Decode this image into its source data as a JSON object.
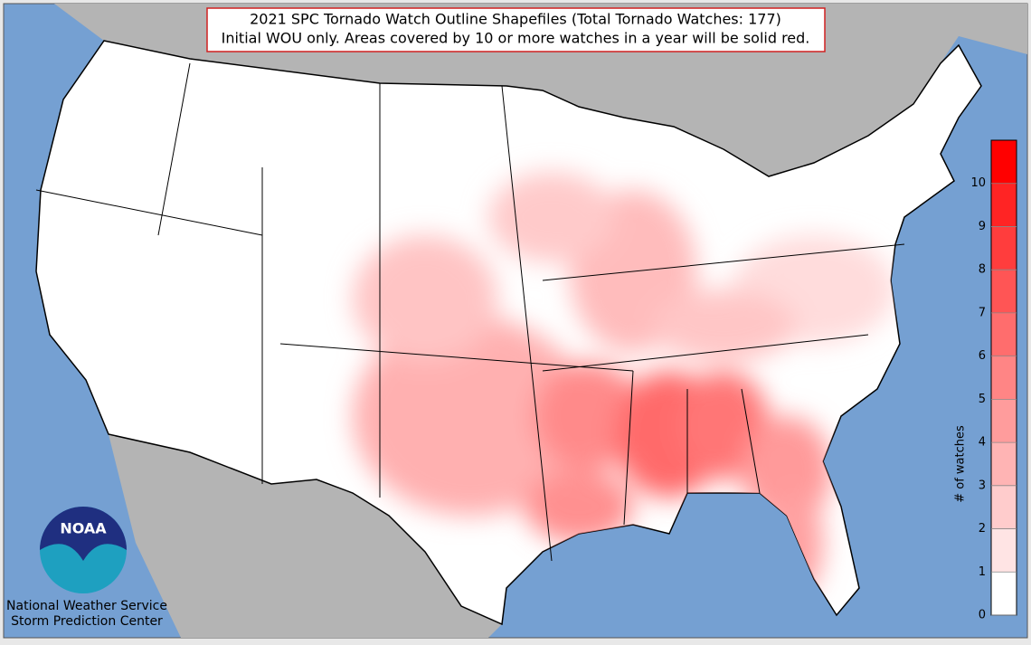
{
  "header": {
    "title_lines": [
      "2021 SPC Tornado Watch Outline Shapefiles (Total Tornado Watches: 177)",
      "Initial WOU only. Areas covered by 10 or more watches in a year will be solid red."
    ]
  },
  "colorbar": {
    "label": "# of watches",
    "range": [
      0,
      11
    ],
    "ticks": [
      0,
      1,
      2,
      3,
      4,
      5,
      6,
      7,
      8,
      9,
      10
    ],
    "colors": [
      "#ffffff",
      "#ffe4e4",
      "#ffcccc",
      "#ffb4b4",
      "#ff9c9c",
      "#ff8585",
      "#ff6d6d",
      "#ff5555",
      "#ff3d3d",
      "#ff2424",
      "#ff0000"
    ]
  },
  "logo": {
    "text": "NOAA"
  },
  "footer": {
    "lines": [
      "National Weather Service",
      "Storm Prediction Center"
    ]
  }
}
